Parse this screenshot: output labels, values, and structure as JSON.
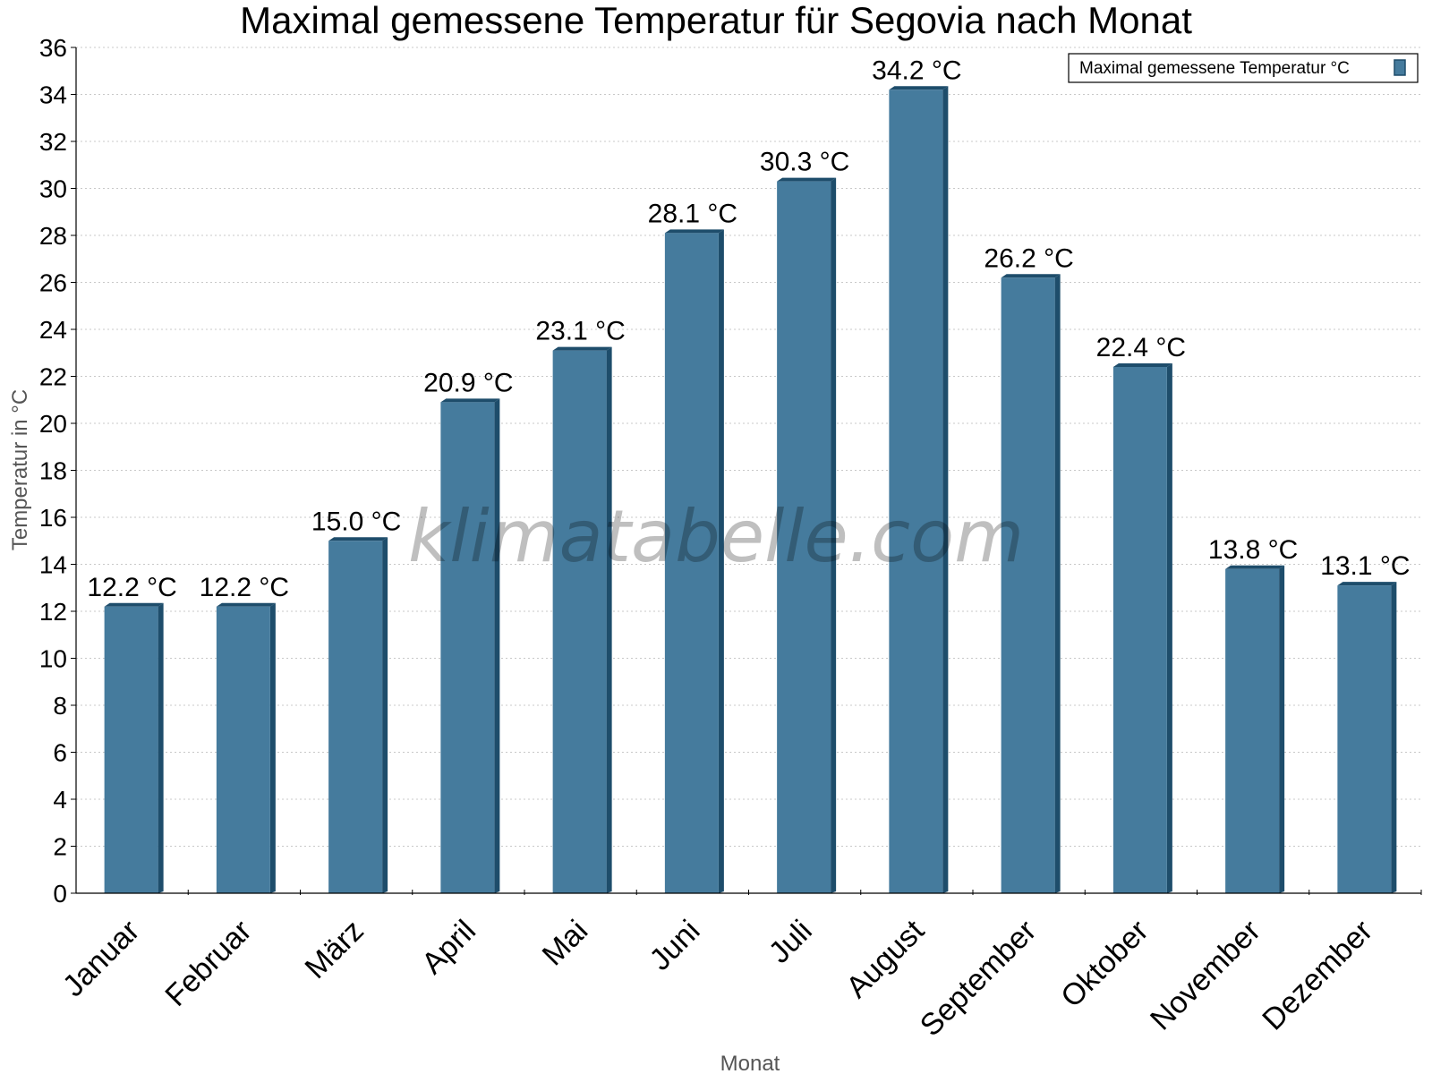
{
  "chart_data": {
    "type": "bar",
    "title": "Maximal gemessene Temperatur für Segovia nach Monat",
    "xlabel": "Monat",
    "ylabel": "Temperatur in °C",
    "categories": [
      "Januar",
      "Februar",
      "März",
      "April",
      "Mai",
      "Juni",
      "Juli",
      "August",
      "September",
      "Oktober",
      "November",
      "Dezember"
    ],
    "series": [
      {
        "name": "Maximal gemessene Temperatur °C",
        "values": [
          12.2,
          12.2,
          15.0,
          20.9,
          23.1,
          28.1,
          30.3,
          34.2,
          26.2,
          22.4,
          13.8,
          13.1
        ]
      }
    ],
    "data_labels": [
      "12.2 °C",
      "12.2 °C",
      "15.0 °C",
      "20.9 °C",
      "23.1 °C",
      "28.1 °C",
      "30.3 °C",
      "34.2 °C",
      "26.2 °C",
      "22.4 °C",
      "13.8 °C",
      "13.1 °C"
    ],
    "ylim": [
      0,
      36
    ],
    "yticks": [
      0,
      2,
      4,
      6,
      8,
      10,
      12,
      14,
      16,
      18,
      20,
      22,
      24,
      26,
      28,
      30,
      32,
      34,
      36
    ],
    "grid": true,
    "legend_position": "top-right",
    "bar_color": "#457b9d",
    "bar_side_color": "#1e4d6b",
    "watermark": "klimatabelle.com"
  }
}
